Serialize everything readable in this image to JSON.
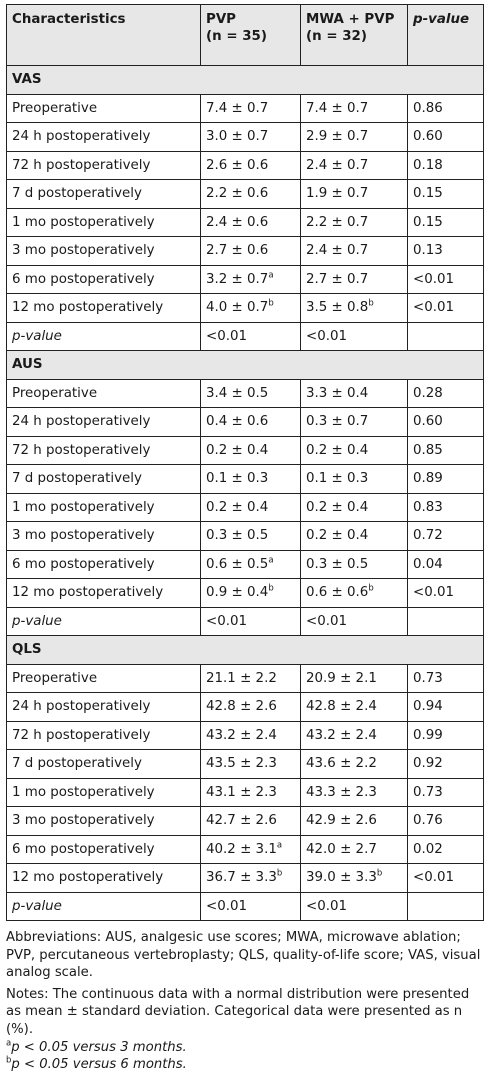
{
  "table": {
    "headers": {
      "characteristics": "Characteristics",
      "pvp": "PVP",
      "pvp_n": "(n = 35)",
      "mwa": "MWA + PVP",
      "mwa_n": "(n = 32)",
      "pvalue": "p-value"
    },
    "sections": [
      {
        "title": "VAS",
        "rows": [
          {
            "label": "Preoperative",
            "pvp": "7.4 ± 0.7",
            "pvp_sup": "",
            "mwa": "7.4 ± 0.7",
            "mwa_sup": "",
            "p": "0.86"
          },
          {
            "label": "24 h postoperatively",
            "pvp": "3.0 ± 0.7",
            "pvp_sup": "",
            "mwa": "2.9 ± 0.7",
            "mwa_sup": "",
            "p": "0.60"
          },
          {
            "label": "72 h postoperatively",
            "pvp": "2.6 ± 0.6",
            "pvp_sup": "",
            "mwa": "2.4 ± 0.7",
            "mwa_sup": "",
            "p": "0.18"
          },
          {
            "label": "7 d postoperatively",
            "pvp": "2.2 ± 0.6",
            "pvp_sup": "",
            "mwa": "1.9 ± 0.7",
            "mwa_sup": "",
            "p": "0.15"
          },
          {
            "label": "1 mo postoperatively",
            "pvp": "2.4 ± 0.6",
            "pvp_sup": "",
            "mwa": "2.2 ± 0.7",
            "mwa_sup": "",
            "p": "0.15"
          },
          {
            "label": "3 mo postoperatively",
            "pvp": "2.7 ± 0.6",
            "pvp_sup": "",
            "mwa": "2.4 ± 0.7",
            "mwa_sup": "",
            "p": "0.13"
          },
          {
            "label": "6 mo postoperatively",
            "pvp": "3.2 ± 0.7",
            "pvp_sup": "a",
            "mwa": "2.7 ± 0.7",
            "mwa_sup": "",
            "p": "<0.01"
          },
          {
            "label": "12 mo postoperatively",
            "pvp": "4.0 ± 0.7",
            "pvp_sup": "b",
            "mwa": "3.5 ± 0.8",
            "mwa_sup": "b",
            "p": "<0.01"
          }
        ],
        "pvalue_row": {
          "label": "p-value",
          "pvp": "<0.01",
          "mwa": "<0.01"
        }
      },
      {
        "title": "AUS",
        "rows": [
          {
            "label": "Preoperative",
            "pvp": "3.4 ± 0.5",
            "pvp_sup": "",
            "mwa": "3.3 ± 0.4",
            "mwa_sup": "",
            "p": "0.28"
          },
          {
            "label": "24 h postoperatively",
            "pvp": "0.4 ± 0.6",
            "pvp_sup": "",
            "mwa": "0.3 ± 0.7",
            "mwa_sup": "",
            "p": "0.60"
          },
          {
            "label": "72 h postoperatively",
            "pvp": "0.2 ± 0.4",
            "pvp_sup": "",
            "mwa": "0.2 ± 0.4",
            "mwa_sup": "",
            "p": "0.85"
          },
          {
            "label": "7 d postoperatively",
            "pvp": "0.1 ± 0.3",
            "pvp_sup": "",
            "mwa": "0.1 ± 0.3",
            "mwa_sup": "",
            "p": "0.89"
          },
          {
            "label": "1 mo postoperatively",
            "pvp": "0.2 ± 0.4",
            "pvp_sup": "",
            "mwa": "0.2 ± 0.4",
            "mwa_sup": "",
            "p": "0.83"
          },
          {
            "label": "3 mo postoperatively",
            "pvp": "0.3 ± 0.5",
            "pvp_sup": "",
            "mwa": "0.2 ± 0.4",
            "mwa_sup": "",
            "p": "0.72"
          },
          {
            "label": "6 mo postoperatively",
            "pvp": "0.6 ± 0.5",
            "pvp_sup": "a",
            "mwa": "0.3 ± 0.5",
            "mwa_sup": "",
            "p": "0.04"
          },
          {
            "label": "12 mo postoperatively",
            "pvp": "0.9 ± 0.4",
            "pvp_sup": "b",
            "mwa": "0.6 ± 0.6",
            "mwa_sup": "b",
            "p": "<0.01"
          }
        ],
        "pvalue_row": {
          "label": "p-value",
          "pvp": "<0.01",
          "mwa": "<0.01"
        }
      },
      {
        "title": "QLS",
        "rows": [
          {
            "label": "Preoperative",
            "pvp": "21.1 ± 2.2",
            "pvp_sup": "",
            "mwa": "20.9 ± 2.1",
            "mwa_sup": "",
            "p": "0.73"
          },
          {
            "label": "24 h postoperatively",
            "pvp": "42.8 ± 2.6",
            "pvp_sup": "",
            "mwa": "42.8 ± 2.4",
            "mwa_sup": "",
            "p": "0.94"
          },
          {
            "label": "72 h postoperatively",
            "pvp": "43.2 ± 2.4",
            "pvp_sup": "",
            "mwa": "43.2 ± 2.4",
            "mwa_sup": "",
            "p": "0.99"
          },
          {
            "label": "7 d postoperatively",
            "pvp": "43.5 ± 2.3",
            "pvp_sup": "",
            "mwa": "43.6 ± 2.2",
            "mwa_sup": "",
            "p": "0.92"
          },
          {
            "label": "1 mo postoperatively",
            "pvp": "43.1 ± 2.3",
            "pvp_sup": "",
            "mwa": "43.3 ± 2.3",
            "mwa_sup": "",
            "p": "0.73"
          },
          {
            "label": "3 mo postoperatively",
            "pvp": "42.7 ± 2.6",
            "pvp_sup": "",
            "mwa": "42.9 ± 2.6",
            "mwa_sup": "",
            "p": "0.76"
          },
          {
            "label": "6 mo postoperatively",
            "pvp": "40.2 ± 3.1",
            "pvp_sup": "a",
            "mwa": "42.0 ± 2.7",
            "mwa_sup": "",
            "p": "0.02"
          },
          {
            "label": "12 mo postoperatively",
            "pvp": "36.7 ± 3.3",
            "pvp_sup": "b",
            "mwa": "39.0 ± 3.3",
            "mwa_sup": "b",
            "p": "<0.01"
          }
        ],
        "pvalue_row": {
          "label": "p-value",
          "pvp": "<0.01",
          "mwa": "<0.01"
        }
      }
    ]
  },
  "footnotes": {
    "abbreviations": "Abbreviations: AUS, analgesic use scores; MWA, microwave ablation; PVP, percutaneous vertebroplasty; QLS, quality-of-life score; VAS, visual analog scale.",
    "notes": "Notes: The continuous data with a normal distribution were presented as mean ± standard deviation. Categorical data were presented as n (%).",
    "a_marker": "a",
    "a_text": "p < 0.05 versus 3 months.",
    "b_marker": "b",
    "b_text": "p < 0.05 versus 6 months."
  },
  "colors": {
    "header_bg": "#e7e7e7",
    "border": "#222222",
    "text": "#1a1a1a"
  }
}
